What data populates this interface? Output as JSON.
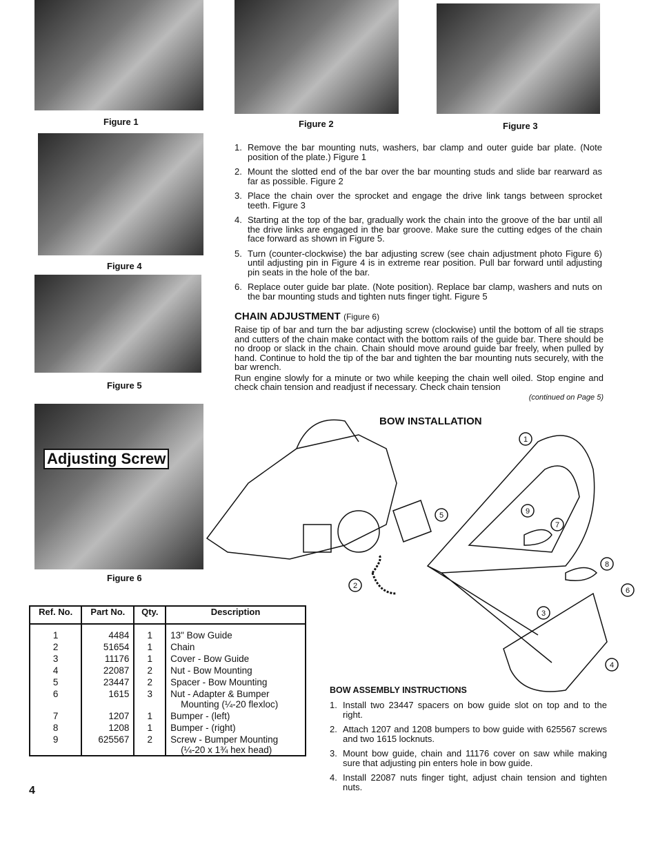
{
  "figures": [
    "Figure 1",
    "Figure 2",
    "Figure 3",
    "Figure 4",
    "Figure 5",
    "Figure 6"
  ],
  "photo_label": "Adjusting Screw",
  "steps": [
    {
      "n": "1.",
      "text": "Remove the bar mounting nuts, washers, bar clamp and outer guide bar plate. (Note position of the plate.) Figure 1"
    },
    {
      "n": "2.",
      "text": "Mount the slotted end of the bar over the bar mounting studs and slide bar rearward as far as possible. Figure 2"
    },
    {
      "n": "3.",
      "text": "Place the chain over the sprocket and engage the drive link tangs between sprocket teeth. Figure 3"
    },
    {
      "n": "4.",
      "text": "Starting at the top of the bar, gradually work the chain into the groove of the bar until all the drive links are engaged in the bar groove. Make sure the cutting edges of the chain face forward as shown in Figure 5."
    },
    {
      "n": "5.",
      "text": "Turn (counter-clockwise) the bar adjusting screw (see chain adjustment photo Figure 6) until adjusting pin in Figure 4 is in extreme rear position. Pull bar forward until adjusting pin seats in the hole of the bar."
    },
    {
      "n": "6.",
      "text": "Replace outer guide bar plate. (Note position). Replace bar clamp, washers and nuts on the bar mounting studs and tighten nuts finger tight. Figure 5"
    }
  ],
  "chain_adjustment": {
    "heading": "CHAIN ADJUSTMENT",
    "note": "(Figure 6)",
    "paragraphs": [
      "Raise tip of bar and turn the bar adjusting screw (clockwise) until the bottom of all tie straps and cutters of the chain make contact with the bottom rails of the guide bar. There should be no droop or slack in the chain. Chain should move around guide bar freely, when pulled by hand. Continue to hold the tip of the bar and tighten the bar mounting nuts securely, with the bar wrench.",
      "Run engine slowly for a minute or two while keeping the chain well oiled. Stop engine and check chain tension and readjust if necessary. Check chain tension"
    ],
    "continued": "(continued on Page 5)"
  },
  "bow_installation": {
    "title": "BOW INSTALLATION",
    "callouts": [
      "1",
      "2",
      "3",
      "4",
      "5",
      "6",
      "7",
      "8",
      "9"
    ]
  },
  "table": {
    "headers": [
      "Ref. No.",
      "Part No.",
      "Qty.",
      "Description"
    ],
    "rows": [
      [
        "1",
        "4484",
        "1",
        "13\" Bow Guide"
      ],
      [
        "2",
        "51654",
        "1",
        "Chain"
      ],
      [
        "3",
        "11176",
        "1",
        "Cover - Bow Guide"
      ],
      [
        "4",
        "22087",
        "2",
        "Nut - Bow Mounting"
      ],
      [
        "5",
        "23447",
        "2",
        "Spacer - Bow Mounting"
      ],
      [
        "6",
        "1615",
        "3",
        "Nut - Adapter & Bumper\n    Mounting (¼-20 flexloc)"
      ],
      [
        "7",
        "1207",
        "1",
        "Bumper - (left)"
      ],
      [
        "8",
        "1208",
        "1",
        "Bumper - (right)"
      ],
      [
        "9",
        "625567",
        "2",
        "Screw - Bumper Mounting\n    (¼-20 x 1¾ hex head)"
      ]
    ]
  },
  "bow_assembly": {
    "heading": "BOW ASSEMBLY INSTRUCTIONS",
    "items": [
      {
        "n": "1.",
        "text": "Install two 23447 spacers on bow guide slot on top and to the right."
      },
      {
        "n": "2.",
        "text": "Attach 1207 and 1208 bumpers to bow guide with 625567 screws and two 1615 locknuts."
      },
      {
        "n": "3.",
        "text": "Mount bow guide, chain and 11176 cover on saw while making sure that adjusting pin enters hole in bow guide."
      },
      {
        "n": "4.",
        "text": "Install 22087 nuts finger tight, adjust chain tension and tighten nuts."
      }
    ]
  },
  "page_number": "4"
}
